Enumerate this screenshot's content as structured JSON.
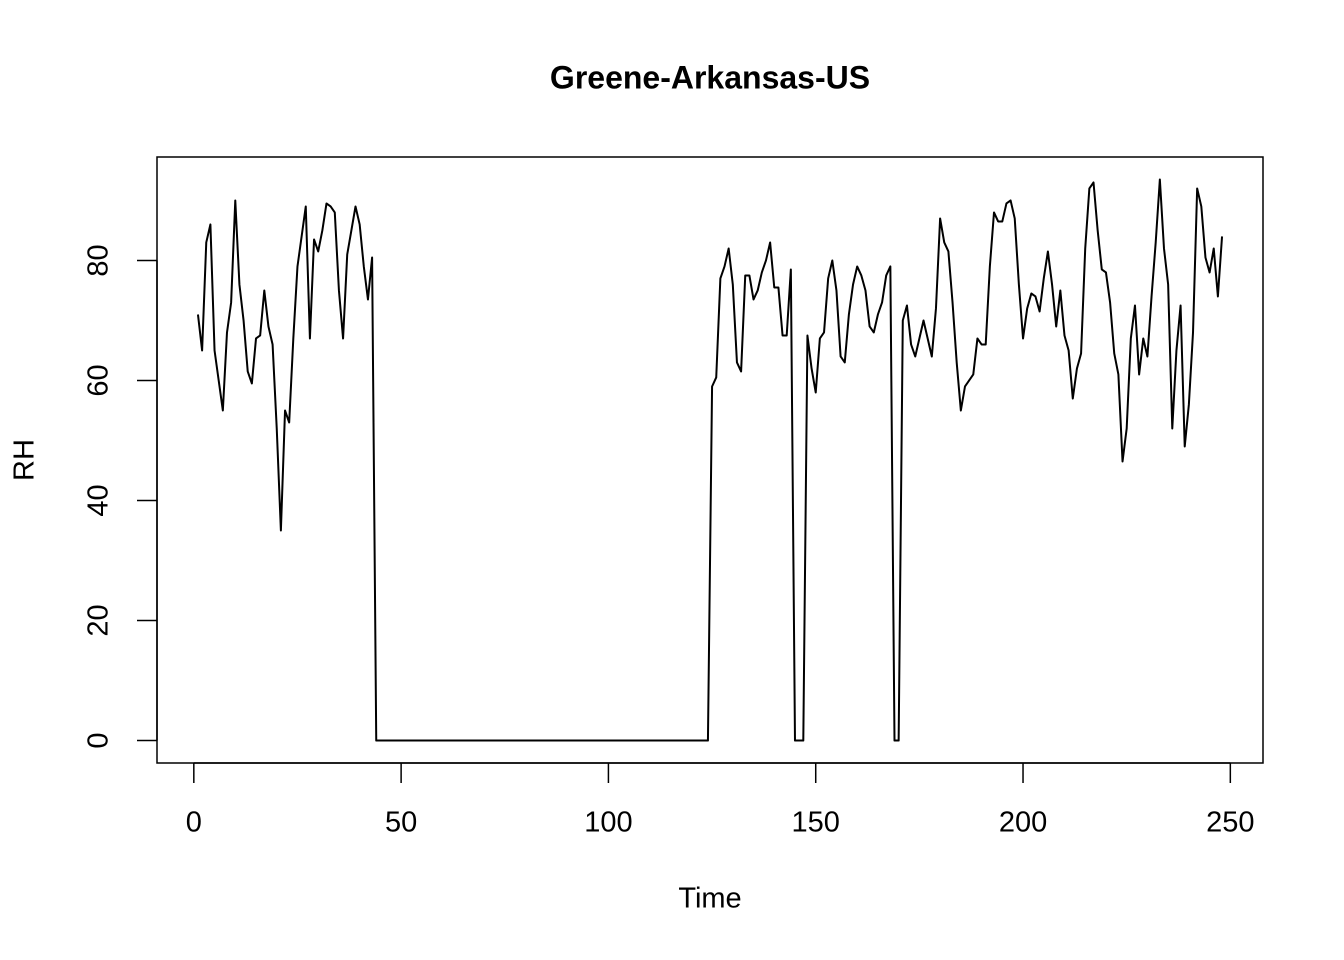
{
  "chart_data": {
    "type": "line",
    "title": "Greene-Arkansas-US",
    "x_label": "Time",
    "y_label": "RH",
    "x": [
      1,
      2,
      3,
      4,
      5,
      6,
      7,
      8,
      9,
      10,
      11,
      12,
      13,
      14,
      15,
      16,
      17,
      18,
      19,
      20,
      21,
      22,
      23,
      24,
      25,
      26,
      27,
      28,
      29,
      30,
      31,
      32,
      33,
      34,
      35,
      36,
      37,
      38,
      39,
      40,
      41,
      42,
      43,
      44,
      45,
      46,
      47,
      48,
      49,
      50,
      51,
      52,
      53,
      54,
      55,
      56,
      57,
      58,
      59,
      60,
      61,
      62,
      63,
      64,
      65,
      66,
      67,
      68,
      69,
      70,
      71,
      72,
      73,
      74,
      75,
      76,
      77,
      78,
      79,
      80,
      81,
      82,
      83,
      84,
      85,
      86,
      87,
      88,
      89,
      90,
      91,
      92,
      93,
      94,
      95,
      96,
      97,
      98,
      99,
      100,
      101,
      102,
      103,
      104,
      105,
      106,
      107,
      108,
      109,
      110,
      111,
      112,
      113,
      114,
      115,
      116,
      117,
      118,
      119,
      120,
      121,
      122,
      123,
      124,
      125,
      126,
      127,
      128,
      129,
      130,
      131,
      132,
      133,
      134,
      135,
      136,
      137,
      138,
      139,
      140,
      141,
      142,
      143,
      144,
      145,
      146,
      147,
      148,
      149,
      150,
      151,
      152,
      153,
      154,
      155,
      156,
      157,
      158,
      159,
      160,
      161,
      162,
      163,
      164,
      165,
      166,
      167,
      168,
      169,
      170,
      171,
      172,
      173,
      174,
      175,
      176,
      177,
      178,
      179,
      180,
      181,
      182,
      183,
      184,
      185,
      186,
      187,
      188,
      189,
      190,
      191,
      192,
      193,
      194,
      195,
      196,
      197,
      198,
      199,
      200,
      201,
      202,
      203,
      204,
      205,
      206,
      207,
      208,
      209,
      210,
      211,
      212,
      213,
      214,
      215,
      216,
      217,
      218,
      219,
      220,
      221,
      222,
      223,
      224,
      225,
      226,
      227,
      228,
      229,
      230,
      231,
      232,
      233,
      234,
      235,
      236,
      237,
      238,
      239,
      240,
      241,
      242,
      243,
      244,
      245,
      246,
      247,
      248
    ],
    "series": [
      {
        "color": "#000000",
        "values": [
          71,
          65,
          83,
          86,
          65,
          60,
          55,
          68,
          73,
          90,
          76,
          70,
          61.5,
          59.5,
          67,
          67.5,
          75,
          69,
          66,
          52,
          35,
          55,
          53,
          67,
          79,
          84,
          89,
          67,
          83.5,
          81.5,
          85,
          89.5,
          89,
          88,
          75,
          67,
          81,
          85,
          89,
          86,
          79,
          73.5,
          80.5,
          0,
          0,
          0,
          0,
          0,
          0,
          0,
          0,
          0,
          0,
          0,
          0,
          0,
          0,
          0,
          0,
          0,
          0,
          0,
          0,
          0,
          0,
          0,
          0,
          0,
          0,
          0,
          0,
          0,
          0,
          0,
          0,
          0,
          0,
          0,
          0,
          0,
          0,
          0,
          0,
          0,
          0,
          0,
          0,
          0,
          0,
          0,
          0,
          0,
          0,
          0,
          0,
          0,
          0,
          0,
          0,
          0,
          0,
          0,
          0,
          0,
          0,
          0,
          0,
          0,
          0,
          0,
          0,
          0,
          0,
          0,
          0,
          0,
          0,
          0,
          0,
          0,
          0,
          0,
          0,
          0,
          59,
          60.5,
          77,
          79,
          82,
          76,
          63,
          61.5,
          77.5,
          77.5,
          73.5,
          75,
          78,
          80,
          83,
          75.5,
          75.5,
          67.5,
          67.5,
          78.5,
          0,
          0,
          0,
          67.5,
          62,
          58,
          67,
          68,
          77,
          80,
          75,
          64,
          63,
          71,
          76,
          79,
          77.5,
          75,
          69,
          68,
          71,
          73,
          77.5,
          79,
          0,
          0,
          70,
          72.5,
          66,
          64,
          67,
          70,
          67,
          64,
          72,
          87,
          83,
          81.5,
          73,
          63,
          55,
          59,
          60,
          61,
          67,
          66,
          66,
          79,
          88,
          86.5,
          86.5,
          89.5,
          90,
          87,
          76,
          67,
          72,
          74.5,
          74,
          71.5,
          77,
          81.5,
          76,
          69,
          75,
          67.5,
          65,
          57,
          62,
          64.5,
          82,
          92,
          93,
          85,
          78.5,
          78,
          73,
          64.5,
          61,
          46.5,
          52,
          67,
          72.5,
          61,
          67,
          64,
          74,
          83,
          93.5,
          82,
          76,
          52,
          65,
          72.5,
          49,
          56,
          68,
          92,
          89,
          80.5,
          78,
          82,
          74,
          84
        ]
      }
    ],
    "xlim": [
      -8.88,
      257.88
    ],
    "xticks": [
      0,
      50,
      100,
      150,
      200,
      250
    ],
    "ylim": [
      -3.74,
      97.24
    ],
    "yticks": [
      0,
      20,
      40,
      60,
      80
    ],
    "grid": false
  }
}
